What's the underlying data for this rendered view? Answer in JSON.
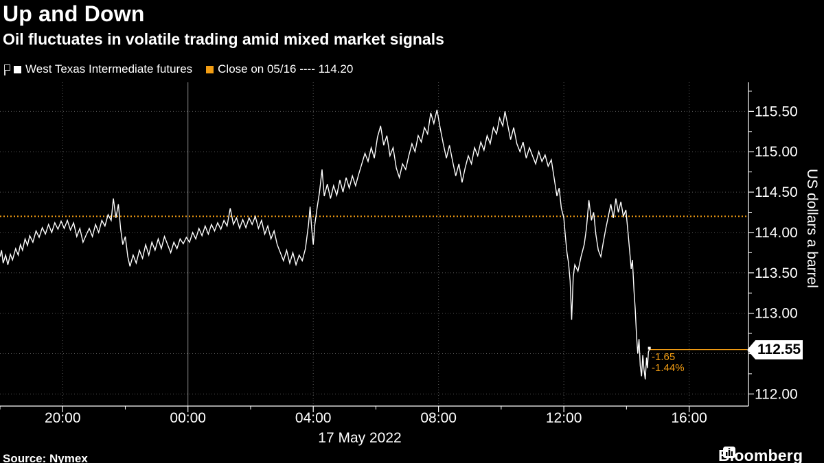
{
  "header": {
    "title": "Up and Down",
    "subtitle": "Oil fluctuates in volatile trading amid mixed market signals"
  },
  "legend": {
    "series1": {
      "label": "West Texas Intermediate futures",
      "color": "#ffffff"
    },
    "series2": {
      "label": "Close on 05/16 ---- 114.20",
      "color": "#f29d13"
    }
  },
  "chart_data": {
    "type": "line",
    "title": "Up and Down",
    "ylabel": "US dollars a barrel",
    "x_date_label": "17 May 2022",
    "xlim_hours": [
      0,
      23.85
    ],
    "ylim": [
      111.85,
      115.86
    ],
    "grid": "dotted",
    "legend_position": "top-left",
    "x_ticks": [
      {
        "h": 2,
        "label": "20:00"
      },
      {
        "h": 6,
        "label": "00:00",
        "solid": true
      },
      {
        "h": 10,
        "label": "04:00"
      },
      {
        "h": 14,
        "label": "08:00"
      },
      {
        "h": 18,
        "label": "12:00"
      },
      {
        "h": 22,
        "label": "16:00"
      }
    ],
    "x_minor_ticks": [
      0,
      4,
      8,
      12,
      16,
      20
    ],
    "y_ticks": [
      {
        "v": 115.5,
        "label": "115.50"
      },
      {
        "v": 115.0,
        "label": "115.00"
      },
      {
        "v": 114.5,
        "label": "114.50"
      },
      {
        "v": 114.0,
        "label": "114.00"
      },
      {
        "v": 113.5,
        "label": "113.50"
      },
      {
        "v": 113.0,
        "label": "113.00"
      },
      {
        "v": 112.5,
        "label": ""
      },
      {
        "v": 112.0,
        "label": "112.00"
      }
    ],
    "y_minor_ticks": [
      115.75,
      115.25,
      114.75,
      114.25,
      113.75,
      113.25,
      112.75,
      112.25
    ],
    "close_line": {
      "value": 114.2,
      "label": "Close on 05/16 ---- 114.20"
    },
    "last": {
      "price": 112.55,
      "tag": "112.55",
      "change": "-1.65",
      "change_pct": "-1.44%"
    },
    "colors": {
      "line": "#ffffff",
      "close": "#f29d13",
      "grid": "#5a5a5a",
      "grid_solid": "#8c8c8c",
      "axis": "#ffffff",
      "tag_bg": "#ffffff",
      "tag_text": "#000000"
    },
    "series": [
      {
        "name": "West Texas Intermediate futures",
        "color": "#ffffff",
        "points": [
          [
            0,
            113.7
          ],
          [
            0.05,
            113.78
          ],
          [
            0.1,
            113.62
          ],
          [
            0.18,
            113.72
          ],
          [
            0.25,
            113.6
          ],
          [
            0.33,
            113.73
          ],
          [
            0.4,
            113.66
          ],
          [
            0.5,
            113.8
          ],
          [
            0.58,
            113.72
          ],
          [
            0.65,
            113.85
          ],
          [
            0.72,
            113.78
          ],
          [
            0.8,
            113.92
          ],
          [
            0.88,
            113.84
          ],
          [
            0.95,
            113.96
          ],
          [
            1.05,
            113.88
          ],
          [
            1.15,
            114.02
          ],
          [
            1.25,
            113.94
          ],
          [
            1.35,
            114.06
          ],
          [
            1.45,
            113.98
          ],
          [
            1.55,
            114.1
          ],
          [
            1.65,
            114.0
          ],
          [
            1.75,
            114.12
          ],
          [
            1.85,
            114.04
          ],
          [
            1.95,
            114.14
          ],
          [
            2.05,
            114.05
          ],
          [
            2.15,
            114.15
          ],
          [
            2.25,
            114.03
          ],
          [
            2.35,
            114.12
          ],
          [
            2.45,
            113.95
          ],
          [
            2.55,
            114.05
          ],
          [
            2.65,
            113.88
          ],
          [
            2.75,
            113.97
          ],
          [
            2.85,
            114.05
          ],
          [
            2.95,
            113.95
          ],
          [
            3.05,
            114.1
          ],
          [
            3.15,
            114.0
          ],
          [
            3.25,
            114.15
          ],
          [
            3.35,
            114.08
          ],
          [
            3.45,
            114.22
          ],
          [
            3.55,
            114.15
          ],
          [
            3.62,
            114.42
          ],
          [
            3.7,
            114.18
          ],
          [
            3.78,
            114.35
          ],
          [
            3.85,
            114.05
          ],
          [
            3.92,
            113.85
          ],
          [
            4.0,
            113.95
          ],
          [
            4.08,
            113.7
          ],
          [
            4.15,
            113.58
          ],
          [
            4.25,
            113.72
          ],
          [
            4.35,
            113.62
          ],
          [
            4.45,
            113.78
          ],
          [
            4.55,
            113.68
          ],
          [
            4.65,
            113.85
          ],
          [
            4.75,
            113.72
          ],
          [
            4.85,
            113.88
          ],
          [
            4.95,
            113.78
          ],
          [
            5.05,
            113.92
          ],
          [
            5.15,
            113.8
          ],
          [
            5.25,
            113.95
          ],
          [
            5.35,
            113.85
          ],
          [
            5.45,
            113.75
          ],
          [
            5.55,
            113.88
          ],
          [
            5.65,
            113.8
          ],
          [
            5.75,
            113.92
          ],
          [
            5.85,
            113.86
          ],
          [
            5.95,
            113.94
          ],
          [
            6.05,
            113.88
          ],
          [
            6.15,
            114.0
          ],
          [
            6.25,
            113.92
          ],
          [
            6.35,
            114.05
          ],
          [
            6.45,
            113.96
          ],
          [
            6.55,
            114.08
          ],
          [
            6.65,
            113.98
          ],
          [
            6.75,
            114.1
          ],
          [
            6.85,
            114.02
          ],
          [
            6.95,
            114.12
          ],
          [
            7.05,
            114.04
          ],
          [
            7.15,
            114.15
          ],
          [
            7.25,
            114.08
          ],
          [
            7.35,
            114.3
          ],
          [
            7.45,
            114.1
          ],
          [
            7.55,
            114.18
          ],
          [
            7.65,
            114.05
          ],
          [
            7.75,
            114.16
          ],
          [
            7.85,
            114.06
          ],
          [
            7.95,
            114.18
          ],
          [
            8.05,
            114.1
          ],
          [
            8.15,
            114.2
          ],
          [
            8.25,
            114.05
          ],
          [
            8.35,
            114.15
          ],
          [
            8.45,
            113.98
          ],
          [
            8.55,
            114.08
          ],
          [
            8.65,
            113.92
          ],
          [
            8.75,
            114.02
          ],
          [
            8.85,
            113.85
          ],
          [
            8.95,
            113.75
          ],
          [
            9.05,
            113.65
          ],
          [
            9.15,
            113.78
          ],
          [
            9.25,
            113.62
          ],
          [
            9.35,
            113.75
          ],
          [
            9.45,
            113.6
          ],
          [
            9.55,
            113.72
          ],
          [
            9.65,
            113.65
          ],
          [
            9.75,
            113.8
          ],
          [
            9.85,
            114.1
          ],
          [
            9.9,
            114.32
          ],
          [
            9.95,
            114.05
          ],
          [
            10.0,
            113.85
          ],
          [
            10.05,
            114.1
          ],
          [
            10.12,
            114.3
          ],
          [
            10.2,
            114.5
          ],
          [
            10.28,
            114.78
          ],
          [
            10.35,
            114.45
          ],
          [
            10.45,
            114.6
          ],
          [
            10.55,
            114.42
          ],
          [
            10.65,
            114.58
          ],
          [
            10.75,
            114.46
          ],
          [
            10.85,
            114.65
          ],
          [
            10.95,
            114.5
          ],
          [
            11.05,
            114.68
          ],
          [
            11.15,
            114.55
          ],
          [
            11.25,
            114.7
          ],
          [
            11.35,
            114.58
          ],
          [
            11.45,
            114.72
          ],
          [
            11.55,
            114.85
          ],
          [
            11.65,
            114.98
          ],
          [
            11.75,
            114.88
          ],
          [
            11.85,
            115.05
          ],
          [
            11.95,
            114.92
          ],
          [
            12.05,
            115.18
          ],
          [
            12.15,
            115.32
          ],
          [
            12.25,
            115.08
          ],
          [
            12.35,
            115.2
          ],
          [
            12.45,
            114.95
          ],
          [
            12.55,
            115.05
          ],
          [
            12.65,
            114.8
          ],
          [
            12.75,
            114.68
          ],
          [
            12.85,
            114.85
          ],
          [
            12.95,
            114.78
          ],
          [
            13.05,
            114.95
          ],
          [
            13.15,
            115.1
          ],
          [
            13.25,
            115.0
          ],
          [
            13.35,
            115.2
          ],
          [
            13.45,
            115.12
          ],
          [
            13.55,
            115.3
          ],
          [
            13.65,
            115.22
          ],
          [
            13.75,
            115.48
          ],
          [
            13.85,
            115.35
          ],
          [
            13.95,
            115.52
          ],
          [
            14.05,
            115.3
          ],
          [
            14.15,
            115.1
          ],
          [
            14.25,
            114.92
          ],
          [
            14.35,
            115.08
          ],
          [
            14.45,
            114.88
          ],
          [
            14.55,
            114.7
          ],
          [
            14.65,
            114.85
          ],
          [
            14.75,
            114.62
          ],
          [
            14.85,
            114.8
          ],
          [
            14.95,
            114.95
          ],
          [
            15.05,
            114.85
          ],
          [
            15.15,
            115.05
          ],
          [
            15.25,
            114.95
          ],
          [
            15.35,
            115.12
          ],
          [
            15.45,
            115.02
          ],
          [
            15.55,
            115.2
          ],
          [
            15.65,
            115.1
          ],
          [
            15.75,
            115.3
          ],
          [
            15.85,
            115.22
          ],
          [
            15.95,
            115.42
          ],
          [
            16.05,
            115.32
          ],
          [
            16.12,
            115.5
          ],
          [
            16.2,
            115.35
          ],
          [
            16.3,
            115.15
          ],
          [
            16.4,
            115.3
          ],
          [
            16.5,
            115.1
          ],
          [
            16.6,
            115.0
          ],
          [
            16.7,
            115.12
          ],
          [
            16.8,
            114.92
          ],
          [
            16.9,
            115.05
          ],
          [
            17.0,
            114.95
          ],
          [
            17.1,
            114.85
          ],
          [
            17.2,
            115.0
          ],
          [
            17.3,
            114.88
          ],
          [
            17.4,
            114.96
          ],
          [
            17.5,
            114.82
          ],
          [
            17.6,
            114.9
          ],
          [
            17.7,
            114.65
          ],
          [
            17.78,
            114.45
          ],
          [
            17.85,
            114.55
          ],
          [
            17.92,
            114.3
          ],
          [
            18.0,
            114.18
          ],
          [
            18.05,
            113.95
          ],
          [
            18.1,
            113.75
          ],
          [
            18.15,
            113.62
          ],
          [
            18.2,
            113.4
          ],
          [
            18.25,
            112.92
          ],
          [
            18.3,
            113.45
          ],
          [
            18.35,
            113.6
          ],
          [
            18.45,
            113.52
          ],
          [
            18.55,
            113.7
          ],
          [
            18.65,
            113.85
          ],
          [
            18.72,
            114.05
          ],
          [
            18.8,
            114.4
          ],
          [
            18.88,
            114.15
          ],
          [
            18.95,
            114.25
          ],
          [
            19.02,
            113.98
          ],
          [
            19.1,
            113.78
          ],
          [
            19.18,
            113.7
          ],
          [
            19.26,
            113.88
          ],
          [
            19.34,
            114.05
          ],
          [
            19.42,
            114.2
          ],
          [
            19.5,
            114.35
          ],
          [
            19.58,
            114.18
          ],
          [
            19.66,
            114.42
          ],
          [
            19.74,
            114.25
          ],
          [
            19.82,
            114.38
          ],
          [
            19.9,
            114.2
          ],
          [
            19.98,
            114.28
          ],
          [
            20.05,
            114.0
          ],
          [
            20.1,
            113.78
          ],
          [
            20.15,
            113.55
          ],
          [
            20.19,
            113.66
          ],
          [
            20.24,
            113.28
          ],
          [
            20.28,
            113.05
          ],
          [
            20.32,
            112.72
          ],
          [
            20.36,
            112.5
          ],
          [
            20.4,
            112.68
          ],
          [
            20.44,
            112.35
          ],
          [
            20.48,
            112.22
          ],
          [
            20.52,
            112.48
          ],
          [
            20.56,
            112.3
          ],
          [
            20.6,
            112.18
          ],
          [
            20.64,
            112.45
          ],
          [
            20.67,
            112.32
          ],
          [
            20.7,
            112.52
          ],
          [
            20.73,
            112.55
          ]
        ]
      }
    ]
  },
  "footer": {
    "source": "Source: Nymex",
    "brand": "Bloomberg"
  }
}
